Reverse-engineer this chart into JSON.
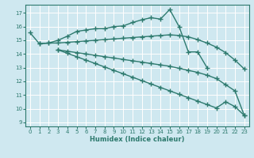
{
  "bg_color": "#cfe8f0",
  "grid_color": "#ffffff",
  "line_color": "#2d7a6e",
  "line_width": 1.0,
  "marker": "+",
  "marker_size": 4.0,
  "xlabel": "Humidex (Indice chaleur)",
  "xlim": [
    -0.5,
    23.5
  ],
  "ylim": [
    8.7,
    17.6
  ],
  "yticks": [
    9,
    10,
    11,
    12,
    13,
    14,
    15,
    16,
    17
  ],
  "xticks": [
    0,
    1,
    2,
    3,
    4,
    5,
    6,
    7,
    8,
    9,
    10,
    11,
    12,
    13,
    14,
    15,
    16,
    17,
    18,
    19,
    20,
    21,
    22,
    23
  ],
  "series": [
    {
      "x": [
        0,
        1,
        2,
        3,
        4,
        5,
        6,
        7,
        8,
        9,
        10,
        11,
        12,
        13,
        14,
        15,
        16,
        17,
        18,
        19,
        20,
        21,
        22,
        23
      ],
      "y": [
        15.55,
        14.75,
        14.8,
        15.0,
        15.3,
        15.65,
        15.75,
        15.85,
        15.85,
        16.0,
        16.05,
        16.3,
        16.5,
        16.65,
        16.55,
        17.25,
        16.0,
        14.15,
        14.15,
        13.0,
        null,
        null,
        null,
        null
      ]
    },
    {
      "x": [
        1,
        2,
        3,
        4,
        5,
        6,
        7,
        8,
        9,
        10,
        11,
        12,
        13,
        14,
        15,
        16,
        17,
        18,
        19,
        20,
        21,
        22,
        23
      ],
      "y": [
        14.75,
        14.8,
        14.8,
        14.85,
        14.9,
        14.95,
        15.0,
        15.05,
        15.1,
        15.15,
        15.2,
        15.25,
        15.3,
        15.35,
        15.4,
        15.35,
        15.25,
        15.05,
        14.8,
        14.5,
        14.1,
        13.55,
        12.9
      ]
    },
    {
      "x": [
        3,
        4,
        5,
        6,
        7,
        8,
        9,
        10,
        11,
        12,
        13,
        14,
        15,
        16,
        17,
        18,
        19,
        20,
        21,
        22,
        23
      ],
      "y": [
        14.3,
        14.2,
        14.1,
        14.0,
        13.9,
        13.8,
        13.7,
        13.6,
        13.5,
        13.4,
        13.3,
        13.2,
        13.1,
        12.95,
        12.8,
        12.65,
        12.45,
        12.2,
        11.75,
        11.3,
        9.5
      ]
    },
    {
      "x": [
        3,
        4,
        5,
        6,
        7,
        8,
        9,
        10,
        11,
        12,
        13,
        14,
        15,
        16,
        17,
        18,
        19,
        20,
        21,
        22,
        23
      ],
      "y": [
        14.3,
        14.05,
        13.8,
        13.55,
        13.3,
        13.05,
        12.8,
        12.55,
        12.3,
        12.05,
        11.8,
        11.55,
        11.3,
        11.05,
        10.8,
        10.55,
        10.3,
        10.05,
        10.5,
        10.15,
        9.5
      ]
    }
  ]
}
